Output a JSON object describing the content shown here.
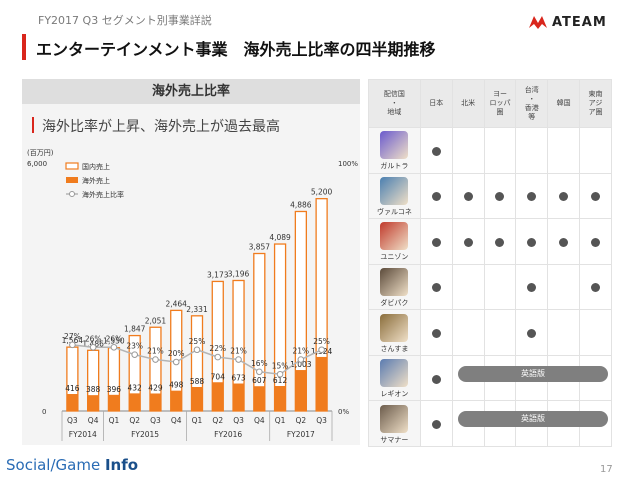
{
  "header": {
    "subtitle": "FY2017 Q3 セグメント別事業詳説",
    "title": "エンターテインメント事業　海外売上比率の四半期推移",
    "logo_text": "ATEAM"
  },
  "panel": {
    "heading": "海外売上比率",
    "subheading": "海外比率が上昇、海外売上が過去最高"
  },
  "chart_data": {
    "type": "bar",
    "unit_label": "(百万円)",
    "categories": [
      "Q3",
      "Q4",
      "Q1",
      "Q2",
      "Q3",
      "Q4",
      "Q1",
      "Q2",
      "Q3",
      "Q4",
      "Q1",
      "Q2",
      "Q3"
    ],
    "fiscal_groups": [
      {
        "label": "FY2014",
        "start": 0,
        "count": 2
      },
      {
        "label": "FY2015",
        "start": 2,
        "count": 4
      },
      {
        "label": "FY2016",
        "start": 6,
        "count": 4
      },
      {
        "label": "FY2017",
        "start": 10,
        "count": 3
      }
    ],
    "totals": [
      1564,
      1486,
      1550,
      1847,
      2051,
      2464,
      2331,
      3173,
      3196,
      3857,
      4089,
      4886,
      5200
    ],
    "total_labels": [
      "1,564",
      "1,486",
      "1,550",
      "1,847",
      "2,051",
      "2,464",
      "2,331",
      "3,173",
      "3,196",
      "3,857",
      "4,089",
      "4,886",
      "5,200"
    ],
    "overseas": [
      416,
      388,
      396,
      432,
      429,
      498,
      588,
      704,
      673,
      607,
      612,
      1003,
      1324
    ],
    "overseas_labels": [
      "416",
      "388",
      "396",
      "432",
      "429",
      "498",
      "588",
      "704",
      "673",
      "607",
      "612",
      "1,003",
      "1,324"
    ],
    "ratio_pct": [
      27,
      26,
      26,
      23,
      21,
      20,
      25,
      22,
      21,
      16,
      15,
      21,
      25
    ],
    "ratio_labels": [
      "27%",
      "26%",
      "26%",
      "23%",
      "21%",
      "20%",
      "25%",
      "22%",
      "21%",
      "16%",
      "15%",
      "21%",
      "25%"
    ],
    "ylim": [
      0,
      6000
    ],
    "y_left_ticks": [
      "6,000",
      "0"
    ],
    "y_right_ticks": [
      "100%",
      "0%"
    ],
    "legend": [
      {
        "name": "国内売上",
        "kind": "hollow-bar"
      },
      {
        "name": "海外売上",
        "kind": "solid-bar"
      },
      {
        "name": "海外売上比率",
        "kind": "line"
      }
    ],
    "colors": {
      "bar": "#f07c1e",
      "line": "#b4b4b4",
      "marker_fill": "#ffffff"
    }
  },
  "table": {
    "corner": [
      "配信国",
      "・",
      "地域"
    ],
    "regions": [
      [
        "日本"
      ],
      [
        "北米"
      ],
      [
        "ヨー",
        "ロッパ",
        "圏"
      ],
      [
        "台湾",
        "・",
        "香港",
        "等"
      ],
      [
        "韓国"
      ],
      [
        "東南",
        "アジ",
        "ア圏"
      ]
    ],
    "apps": [
      {
        "name": "ガルトラ",
        "icon": "galtra-icon",
        "avail": [
          true,
          false,
          false,
          false,
          false,
          false
        ],
        "english": ""
      },
      {
        "name": "ヴァルコネ",
        "icon": "valcone-icon",
        "avail": [
          true,
          true,
          true,
          true,
          true,
          true
        ],
        "english": ""
      },
      {
        "name": "ユニゾン",
        "icon": "unison-icon",
        "avail": [
          true,
          true,
          true,
          true,
          true,
          true
        ],
        "english": ""
      },
      {
        "name": "ダビパク",
        "icon": "dabipaku-icon",
        "avail": [
          true,
          false,
          false,
          true,
          false,
          true
        ],
        "english": ""
      },
      {
        "name": "さんすま",
        "icon": "sansuma-icon",
        "avail": [
          true,
          false,
          false,
          true,
          false,
          false
        ],
        "english": ""
      },
      {
        "name": "レギオン",
        "icon": "legion-icon",
        "avail": [
          true,
          false,
          false,
          false,
          false,
          false
        ],
        "english": "英語版"
      },
      {
        "name": "サマナー",
        "icon": "summoner-icon",
        "avail": [
          true,
          false,
          false,
          false,
          false,
          false
        ],
        "english": "英語版"
      }
    ]
  },
  "footer": {
    "brand_a": "Social/Game ",
    "brand_b": "Info",
    "page": "17"
  }
}
